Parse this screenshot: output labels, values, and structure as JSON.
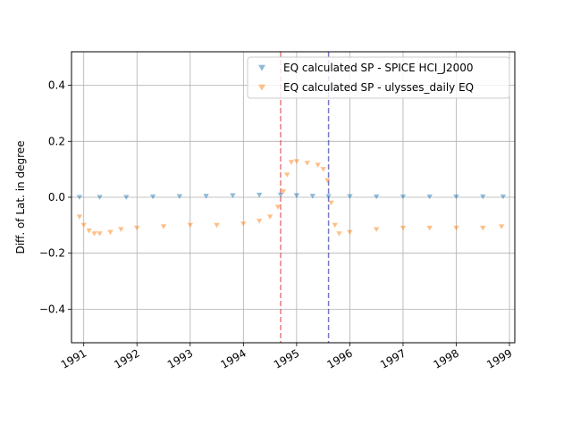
{
  "chart_data": {
    "type": "scatter",
    "ylabel": "Diff. of Lat. in degree",
    "xlabel": "",
    "xlim": [
      1990.77,
      1999.1
    ],
    "ylim": [
      -0.52,
      0.52
    ],
    "grid": true,
    "legend_position": "top-right",
    "x_ticks": [
      1991,
      1992,
      1993,
      1994,
      1995,
      1996,
      1997,
      1998,
      1999
    ],
    "x_tick_labels": [
      "1991",
      "1992",
      "1993",
      "1994",
      "1995",
      "1996",
      "1997",
      "1998",
      "1999"
    ],
    "y_ticks": [
      -0.4,
      -0.2,
      0.0,
      0.2,
      0.4
    ],
    "y_tick_labels": [
      "−0.4",
      "−0.2",
      "0.0",
      "0.2",
      "0.4"
    ],
    "series": [
      {
        "name": "EQ calculated SP - SPICE HCI_J2000",
        "color": "#1f77b4",
        "marker": "triangle-down",
        "x": [
          1990.92,
          1991.3,
          1991.8,
          1992.3,
          1992.8,
          1993.3,
          1993.8,
          1994.3,
          1994.7,
          1995.0,
          1995.3,
          1995.6,
          1996.0,
          1996.5,
          1997.0,
          1997.5,
          1998.0,
          1998.5,
          1998.88
        ],
        "y": [
          0.0,
          0.0,
          0.0,
          0.002,
          0.003,
          0.004,
          0.006,
          0.008,
          0.008,
          0.006,
          0.004,
          0.003,
          0.003,
          0.002,
          0.002,
          0.002,
          0.002,
          0.002,
          0.002
        ]
      },
      {
        "name": "EQ calculated SP - ulysses_daily EQ",
        "color": "#ff7f0e",
        "marker": "triangle-down",
        "x": [
          1990.92,
          1991.0,
          1991.1,
          1991.2,
          1991.3,
          1991.5,
          1991.7,
          1992.0,
          1992.5,
          1993.0,
          1993.5,
          1994.0,
          1994.3,
          1994.5,
          1994.65,
          1994.75,
          1994.82,
          1994.9,
          1995.0,
          1995.2,
          1995.4,
          1995.5,
          1995.58,
          1995.65,
          1995.72,
          1995.8,
          1996.0,
          1996.5,
          1997.0,
          1997.5,
          1998.0,
          1998.5,
          1998.85
        ],
        "y": [
          -0.07,
          -0.1,
          -0.12,
          -0.13,
          -0.13,
          -0.125,
          -0.115,
          -0.11,
          -0.105,
          -0.1,
          -0.1,
          -0.095,
          -0.085,
          -0.07,
          -0.035,
          0.02,
          0.08,
          0.125,
          0.128,
          0.122,
          0.115,
          0.1,
          0.06,
          -0.02,
          -0.1,
          -0.13,
          -0.125,
          -0.115,
          -0.11,
          -0.11,
          -0.11,
          -0.11,
          -0.105
        ]
      }
    ],
    "vlines": [
      {
        "x": 1994.7,
        "color": "#d62728"
      },
      {
        "x": 1995.6,
        "color": "#1f1f9f"
      }
    ]
  }
}
